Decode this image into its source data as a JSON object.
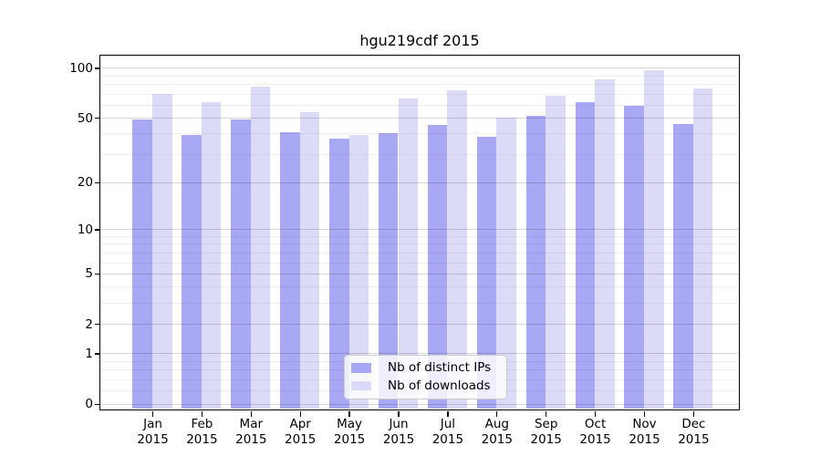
{
  "chart_data": {
    "type": "bar",
    "title": "hgu219cdf 2015",
    "year_label": "2015",
    "categories": [
      "Jan",
      "Feb",
      "Mar",
      "Apr",
      "May",
      "Jun",
      "Jul",
      "Aug",
      "Sep",
      "Oct",
      "Nov",
      "Dec"
    ],
    "series": [
      {
        "name": "Nb of distinct IPs",
        "color": "#a8a8f5",
        "values": [
          49,
          39,
          49,
          41,
          37,
          40,
          45,
          38,
          51,
          62,
          59,
          46
        ]
      },
      {
        "name": "Nb of downloads",
        "color": "#dbdbf8",
        "values": [
          70,
          62,
          77,
          54,
          39,
          65,
          73,
          50,
          68,
          85,
          97,
          75
        ]
      }
    ],
    "yscale": "log1p",
    "yticks": [
      0,
      1,
      2,
      5,
      10,
      20,
      50,
      100
    ],
    "yticks_minor": [
      0.2,
      0.4,
      0.6,
      0.8,
      3,
      4,
      6,
      7,
      8,
      9,
      30,
      40,
      60,
      70,
      80,
      90
    ],
    "ylim": [
      0,
      118
    ],
    "xlabel": "",
    "ylabel": "",
    "grid": "horizontal-only",
    "legend_position": "bottom-center"
  }
}
